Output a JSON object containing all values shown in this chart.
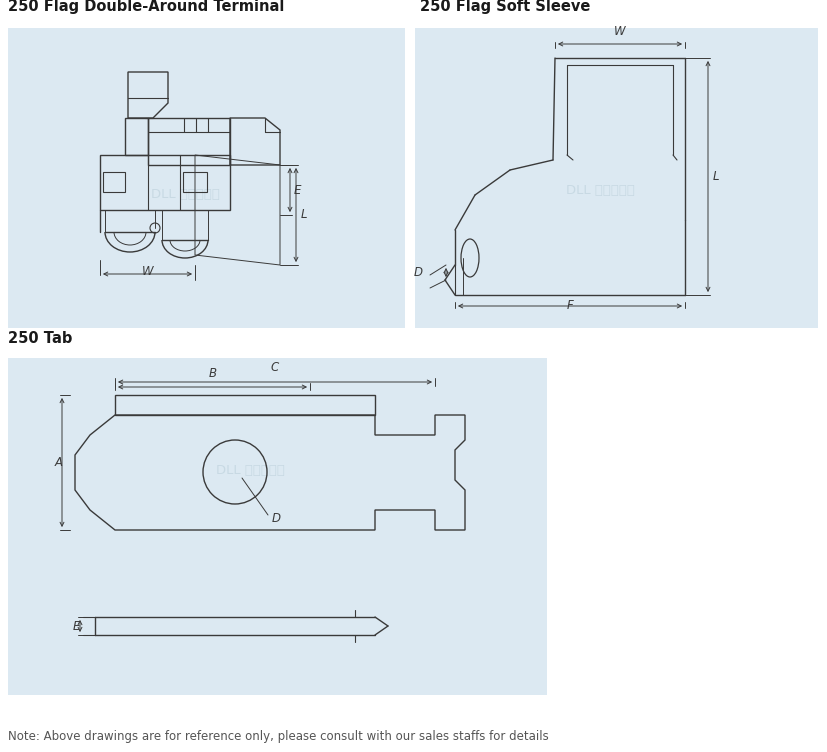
{
  "title1": "250 Flag Double-Around Terminal",
  "title2": "250 Flag Soft Sleeve",
  "title3": "250 Tab",
  "note": "Note: Above drawings are for reference only, please consult with our sales staffs for details",
  "bg_color": "#dce9f2",
  "white_bg": "#ffffff",
  "line_color": "#3a3a3a",
  "dim_color": "#3a3a3a",
  "watermark_color": "#b8cdd8",
  "title_fontsize": 10.5,
  "note_fontsize": 8.5
}
